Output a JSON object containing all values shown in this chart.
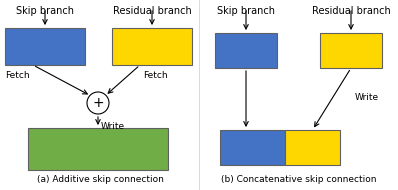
{
  "blue_color": "#4472C4",
  "yellow_color": "#FFD700",
  "green_color": "#70AD47",
  "bg_color": "#FFFFFF",
  "text_color": "#000000",
  "border_color": "#808080",
  "fig_width": 3.98,
  "fig_height": 1.9,
  "dpi": 100,
  "caption_left": "(a) Additive skip connection",
  "caption_right": "(b) Concatenative skip connection",
  "label_skip": "Skip branch",
  "label_residual": "Residual branch",
  "label_fetch": "Fetch",
  "label_write": "Write"
}
